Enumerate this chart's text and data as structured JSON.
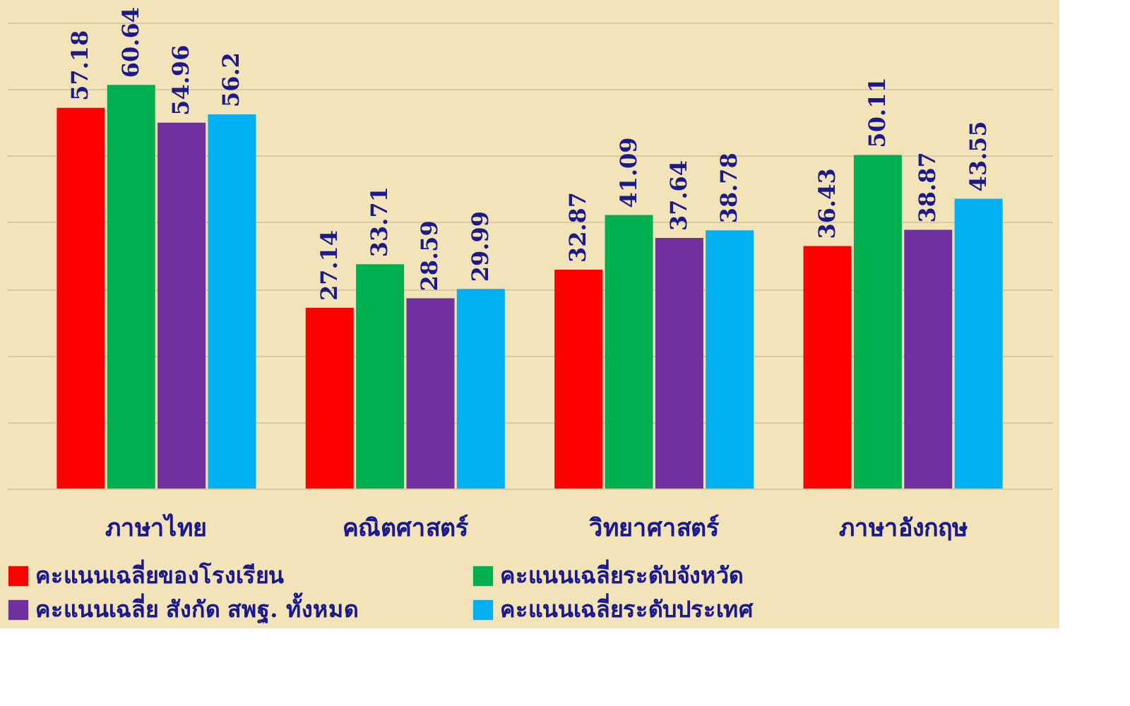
{
  "chart_data": {
    "type": "bar",
    "categories": [
      "ภาษาไทย",
      "คณิตศาสตร์",
      "วิทยาศาสตร์",
      "ภาษาอังกฤษ"
    ],
    "series": [
      {
        "name": "คะแนนเฉลี่ยของโรงเรียน",
        "color": "#ff0000",
        "values": [
          57.18,
          27.14,
          32.87,
          36.43
        ]
      },
      {
        "name": "คะแนนเฉลี่ยระดับจังหวัด",
        "color": "#00b050",
        "values": [
          60.64,
          33.71,
          41.09,
          50.11
        ]
      },
      {
        "name": "คะแนนเฉลี่ย สังกัด สพฐ. ทั้งหมด",
        "color": "#7030a0",
        "values": [
          54.96,
          28.59,
          37.64,
          38.87
        ]
      },
      {
        "name": "คะแนนเฉลี่ยระดับประเทศ",
        "color": "#00b0f0",
        "values": [
          56.2,
          29.99,
          38.78,
          43.55
        ]
      }
    ],
    "ylim": [
      0,
      70
    ],
    "yticks": [
      {
        "value": 0,
        "label": null
      },
      {
        "value": 10,
        "label": null
      },
      {
        "value": 20,
        "label": null
      },
      {
        "value": 30,
        "label": null
      },
      {
        "value": 40,
        "label": null
      },
      {
        "value": 50,
        "label": null
      },
      {
        "value": 60,
        "label": null
      },
      {
        "value": 70,
        "label": null
      }
    ],
    "grid": "y",
    "tick_labels": "x",
    "data_labels": true,
    "legend": "bottom"
  }
}
